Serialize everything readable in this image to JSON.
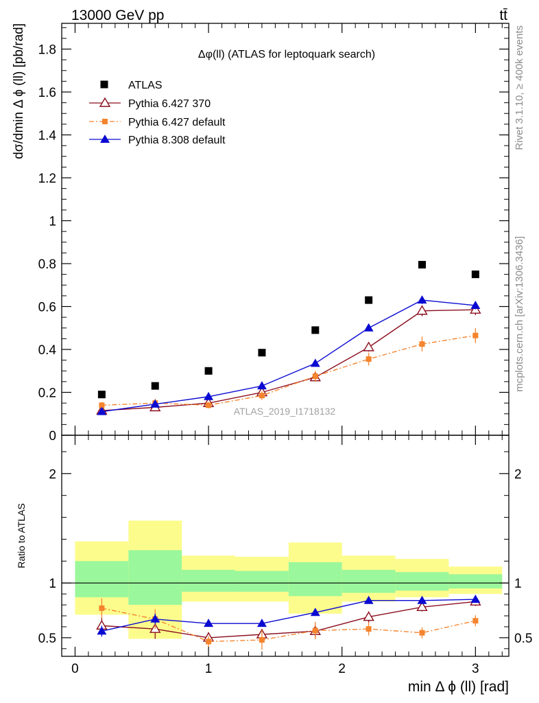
{
  "header": {
    "left_label": "13000 GeV pp",
    "right_label": "tt̄"
  },
  "side_labels": {
    "rivet": "Rivet 3.1.10, ≥ 400k events",
    "mcplots": "mcplots.cern.ch [arXiv:1306.3436]"
  },
  "colors": {
    "atlas": "#000000",
    "py6_370": "#8b0e1e",
    "py6_default": "#f5842d",
    "py8_default": "#0a0ad2",
    "band_green": "#9bf79b",
    "band_yellow": "#fcfc8c"
  },
  "chart_data": [
    {
      "type": "scatter",
      "title": "Δφ(ll) (ATLAS for leptoquark search)",
      "watermark": "ATLAS_2019_I1718132",
      "xlabel": "min Δ ϕ (ll) [rad]",
      "ylabel": "dσ/dmin Δ ϕ (ll) [pb/rad]",
      "xlim": [
        -0.1,
        3.25
      ],
      "ylim": [
        0,
        1.92
      ],
      "y_ticks": [
        0,
        0.2,
        0.4,
        0.6,
        0.8,
        1,
        1.2,
        1.4,
        1.6,
        1.8
      ],
      "y_tick_labels": [
        "0",
        "0.2",
        "0.4",
        "0.6",
        "0.8",
        "1",
        "1.2",
        "1.4",
        "1.6",
        "1.8"
      ],
      "x": [
        0.2,
        0.6,
        1.0,
        1.4,
        1.8,
        2.2,
        2.6,
        3.0
      ],
      "series": [
        {
          "name": "ATLAS",
          "style": "data",
          "values": [
            0.19,
            0.23,
            0.3,
            0.385,
            0.49,
            0.63,
            0.795,
            0.75
          ],
          "errors": [
            0,
            0,
            0,
            0,
            0,
            0,
            0,
            0
          ]
        },
        {
          "name": "Pythia 6.427 370",
          "style": "open-triangle",
          "values": [
            0.115,
            0.13,
            0.15,
            0.2,
            0.27,
            0.41,
            0.58,
            0.585
          ],
          "errors": [
            0.008,
            0.008,
            0.008,
            0.01,
            0.012,
            0.02,
            0.025,
            0.025
          ]
        },
        {
          "name": "Pythia 6.427 default",
          "style": "square-dashdot",
          "values": [
            0.14,
            0.15,
            0.14,
            0.185,
            0.275,
            0.355,
            0.425,
            0.465
          ],
          "errors": [
            0.015,
            0.02,
            0.015,
            0.02,
            0.025,
            0.03,
            0.035,
            0.035
          ]
        },
        {
          "name": "Pythia 8.308 default",
          "style": "filled-triangle",
          "values": [
            0.11,
            0.145,
            0.18,
            0.23,
            0.335,
            0.5,
            0.63,
            0.605
          ],
          "errors": [
            0.006,
            0.006,
            0.007,
            0.008,
            0.01,
            0.015,
            0.018,
            0.018
          ]
        }
      ]
    },
    {
      "type": "scatter",
      "title": "",
      "xlabel": "min Δ ϕ (ll) [rad]",
      "ylabel": "Ratio to ATLAS",
      "xlim": [
        -0.1,
        3.25
      ],
      "ylim": [
        0.33,
        2.35
      ],
      "y_ticks": [
        0.5,
        1,
        2
      ],
      "y_tick_labels": [
        "0.5",
        "1",
        "2"
      ],
      "x_ticks": [
        0,
        1,
        2,
        3
      ],
      "x_tick_labels": [
        "0",
        "1",
        "2",
        "3"
      ],
      "reference_line": 1,
      "bands": {
        "bin_edges": [
          0,
          0.4,
          0.8,
          1.2,
          1.6,
          2.0,
          2.4,
          2.8,
          3.2
        ],
        "green_lo": [
          0.87,
          0.8,
          0.92,
          0.92,
          0.88,
          0.91,
          0.93,
          0.95
        ],
        "green_hi": [
          1.2,
          1.3,
          1.12,
          1.11,
          1.19,
          1.12,
          1.1,
          1.08
        ],
        "yellow_lo": [
          0.71,
          0.49,
          0.83,
          0.83,
          0.72,
          0.83,
          0.87,
          0.9
        ],
        "yellow_hi": [
          1.38,
          1.57,
          1.25,
          1.24,
          1.37,
          1.25,
          1.22,
          1.15
        ]
      },
      "x": [
        0.2,
        0.6,
        1.0,
        1.4,
        1.8,
        2.2,
        2.6,
        3.0
      ],
      "series": [
        {
          "name": "Pythia 6.427 370",
          "style": "open-triangle",
          "values": [
            0.61,
            0.58,
            0.5,
            0.53,
            0.56,
            0.69,
            0.78,
            0.83
          ],
          "errors": [
            0.07,
            0.09,
            0.05,
            0.05,
            0.06,
            0.05,
            0.04,
            0.04
          ]
        },
        {
          "name": "Pythia 6.427 default",
          "style": "square-dashdot",
          "values": [
            0.77,
            0.67,
            0.465,
            0.48,
            0.565,
            0.58,
            0.545,
            0.655
          ],
          "errors": [
            0.09,
            0.09,
            0.05,
            0.09,
            0.08,
            0.06,
            0.05,
            0.05
          ]
        },
        {
          "name": "Pythia 8.308 default",
          "style": "filled-triangle",
          "values": [
            0.56,
            0.67,
            0.63,
            0.63,
            0.73,
            0.84,
            0.84,
            0.85
          ],
          "errors": [
            0.05,
            0.05,
            0.03,
            0.03,
            0.03,
            0.02,
            0.02,
            0.02
          ]
        }
      ]
    }
  ]
}
